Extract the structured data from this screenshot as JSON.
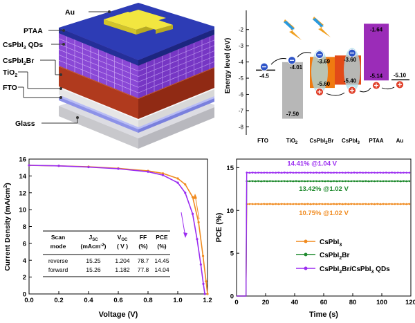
{
  "device": {
    "layers": {
      "au": "Au",
      "ptaa": "PTAA",
      "qds": "CsPbI",
      "qds_sub": "3",
      "qds_suffix": " QDs",
      "cspbi2br": "CsPbI",
      "cspbi2br_sub": "2",
      "cspbi2br_suffix": "Br",
      "tio2": "TiO",
      "tio2_sub": "2",
      "fto": "FTO",
      "glass": "Glass"
    },
    "colors": {
      "au": "#f0e040",
      "ptaa": "#2a3fb8",
      "qds": "#8b45d8",
      "cspbi2br": "#a83018",
      "tio2": "#f2f2f2",
      "fto": "#9aa0f0",
      "glass": "#e8e8ec"
    }
  },
  "energy": {
    "ylabel": "Energy level (eV)",
    "yticks": [
      "-2",
      "-3",
      "-4",
      "-5",
      "-6",
      "-7",
      "-8"
    ],
    "ylim": [
      -8.2,
      -1.2
    ],
    "xlabels": {
      "fto": "FTO",
      "tio2": "TiO",
      "tio2_sub": "2",
      "cspbi2br": "CsPbI",
      "cspbi2br_sub": "2",
      "cspbi2br_suffix": "Br",
      "cspbi3": "CsPbI",
      "cspbi3_sub": "3",
      "ptaa": "PTAA",
      "au": "Au"
    },
    "levels": {
      "fto": "-4.5",
      "tio2_cb": "-4.01",
      "tio2_vb": "-7.50",
      "cspbi2br_cb": "-3.69",
      "cspbi2br_vb": "-5.60",
      "cspbi3_cb": "-3.60",
      "cspbi3_vb": "-5.40",
      "ptaa_top": "-1.64",
      "ptaa_bot": "-5.14",
      "au": "-5.10"
    },
    "values": {
      "fto": -4.5,
      "tio2_cb": -4.01,
      "tio2_vb": -7.5,
      "cspbi2br_cb": -3.69,
      "cspbi2br_vb": -5.6,
      "cspbi3_cb": -3.6,
      "cspbi3_vb": -5.4,
      "ptaa_top": -1.64,
      "ptaa_bot": -5.14,
      "au": -5.1
    },
    "charges": {
      "electron": "⊖",
      "hole": "+"
    }
  },
  "jv": {
    "chart_data": {
      "type": "line",
      "xlabel": "Voltage (V)",
      "ylabel": "Current Density (mA/cm",
      "ylabel_sup": "2",
      "ylabel_end": ")",
      "xlim": [
        0.0,
        1.2
      ],
      "ylim": [
        0,
        16
      ],
      "xticks": [
        "0.0",
        "0.2",
        "0.4",
        "0.6",
        "0.8",
        "1.0",
        "1.2"
      ],
      "yticks": [
        "0",
        "2",
        "4",
        "6",
        "8",
        "10",
        "12",
        "14",
        "16"
      ],
      "series": [
        {
          "x": [
            0.0,
            0.2,
            0.4,
            0.6,
            0.8,
            0.9,
            1.0,
            1.05,
            1.1,
            1.14,
            1.17,
            1.19,
            1.2
          ],
          "y": [
            15.25,
            15.2,
            15.1,
            14.9,
            14.6,
            14.3,
            13.7,
            13.0,
            11.5,
            8.5,
            4.5,
            1.5,
            0.0
          ],
          "color": "#f08a1e"
        },
        {
          "x": [
            0.0,
            0.2,
            0.4,
            0.6,
            0.8,
            0.9,
            1.0,
            1.05,
            1.1,
            1.13,
            1.155,
            1.172,
            1.182
          ],
          "y": [
            15.26,
            15.2,
            15.05,
            14.85,
            14.5,
            14.1,
            13.2,
            12.0,
            9.5,
            6.5,
            3.5,
            1.2,
            0.0
          ],
          "color": "#9b2cf0"
        }
      ]
    },
    "table": {
      "headers": [
        "Scan mode",
        "J SC (mAcm-2)",
        "V OC ( V )",
        "FF (%)",
        "PCE (%)"
      ],
      "h_scan": "Scan",
      "h_mode": "mode",
      "h_j": "J",
      "h_j_sub": "SC",
      "h_j_unit": "(mAcm",
      "h_j_unit_sup": "-2",
      "h_j_unit_end": ")",
      "h_v": "V",
      "h_v_sub": "OC",
      "h_v_unit": "( V )",
      "h_ff": "FF",
      "h_ff_unit": "(%)",
      "h_pce": "PCE",
      "h_pce_unit": "(%)",
      "rows": [
        [
          "reverse",
          "15.25",
          "1.204",
          "78.7",
          "14.45"
        ],
        [
          "forward",
          "15.26",
          "1.182",
          "77.8",
          "14.04"
        ]
      ]
    }
  },
  "pce": {
    "chart_data": {
      "type": "line",
      "xlabel": "Time (s)",
      "ylabel": "PCE (%)",
      "xlim": [
        0,
        120
      ],
      "ylim": [
        0,
        16
      ],
      "xticks": [
        "0",
        "20",
        "40",
        "60",
        "80",
        "100",
        "120"
      ],
      "yticks": [
        "0",
        "5",
        "10",
        "15"
      ],
      "series": [
        {
          "name": "CsPbI",
          "name_sub": "3",
          "color": "#f08a1e",
          "level": 10.75,
          "label": "10.75% @1.02 V"
        },
        {
          "name": "CsPbI",
          "name_sub": "2",
          "name_suffix": "Br",
          "color": "#1f8a2e",
          "level": 13.42,
          "label": "13.42% @1.02 V"
        },
        {
          "name": "CsPbI",
          "name_sub": "2",
          "name_suffix": "Br/CsPbI",
          "name_sub2": "3",
          "name_suffix2": " QDs",
          "color": "#9b2cf0",
          "level": 14.41,
          "label": "14.41% @1.04 V"
        }
      ],
      "on_time": 7
    }
  }
}
